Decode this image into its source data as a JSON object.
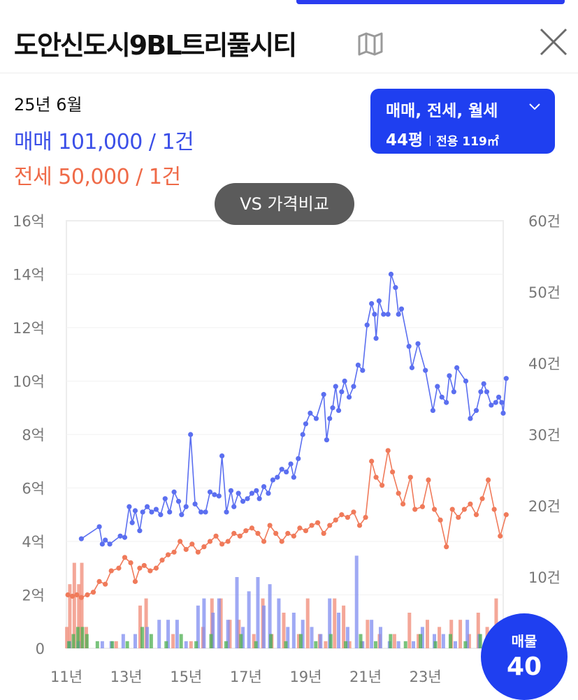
{
  "header": {
    "title": "도안신도시9BL트리풀시티",
    "map_icon": "map-icon",
    "close_icon": "close-icon"
  },
  "summary": {
    "period": "25년 6월",
    "sale_label": "매매",
    "sale_value": "101,000 / 1건",
    "jeonse_label": "전세",
    "jeonse_value": "50,000 / 1건"
  },
  "filter": {
    "types": "매매, 전세, 월세",
    "size": "44평",
    "area": "전용 119㎡"
  },
  "compare_button": "VS 가격비교",
  "listings": {
    "label": "매물",
    "count": "40"
  },
  "colors": {
    "accent": "#1f3ff0",
    "sale": "#5b6ff0",
    "jeonse": "#f07a5a",
    "monthly": "#4caf50"
  },
  "chart_data": {
    "type": "line",
    "x_tick_labels": [
      "11년",
      "13년",
      "15년",
      "17년",
      "19년",
      "21년",
      "23년"
    ],
    "y_left_ticks": [
      "0",
      "2억",
      "4억",
      "6억",
      "8억",
      "10억",
      "12억",
      "14억",
      "16억"
    ],
    "y_right_ticks": [
      "10건",
      "20건",
      "30건",
      "40건",
      "50건",
      "60건"
    ],
    "ylim_left_eok": [
      0,
      16
    ],
    "ylim_right_count": [
      0,
      60
    ],
    "xlim_year": [
      2011,
      2025.6
    ],
    "grid": true,
    "series": [
      {
        "color": "#5b6ff0",
        "axis": "left",
        "points": [
          [
            2011.5,
            4.1
          ],
          [
            2012.1,
            4.55
          ],
          [
            2012.2,
            3.9
          ],
          [
            2012.3,
            4.05
          ],
          [
            2012.45,
            3.9
          ],
          [
            2012.8,
            4.2
          ],
          [
            2012.95,
            4.15
          ],
          [
            2013.1,
            5.3
          ],
          [
            2013.2,
            4.7
          ],
          [
            2013.3,
            5.15
          ],
          [
            2013.45,
            4.4
          ],
          [
            2013.55,
            5.1
          ],
          [
            2013.7,
            5.3
          ],
          [
            2013.85,
            5.1
          ],
          [
            2014.0,
            5.2
          ],
          [
            2014.15,
            5.0
          ],
          [
            2014.3,
            5.6
          ],
          [
            2014.45,
            5.1
          ],
          [
            2014.6,
            5.85
          ],
          [
            2014.75,
            5.5
          ],
          [
            2014.85,
            5.0
          ],
          [
            2015.0,
            5.3
          ],
          [
            2015.15,
            8.0
          ],
          [
            2015.3,
            5.4
          ],
          [
            2015.5,
            5.1
          ],
          [
            2015.65,
            5.1
          ],
          [
            2015.8,
            5.85
          ],
          [
            2015.95,
            5.75
          ],
          [
            2016.1,
            5.7
          ],
          [
            2016.2,
            7.2
          ],
          [
            2016.35,
            5.1
          ],
          [
            2016.5,
            5.9
          ],
          [
            2016.6,
            5.3
          ],
          [
            2016.75,
            5.8
          ],
          [
            2016.9,
            5.5
          ],
          [
            2017.05,
            5.6
          ],
          [
            2017.2,
            5.8
          ],
          [
            2017.35,
            5.9
          ],
          [
            2017.45,
            5.6
          ],
          [
            2017.6,
            6.05
          ],
          [
            2017.75,
            5.8
          ],
          [
            2017.9,
            6.3
          ],
          [
            2018.05,
            6.4
          ],
          [
            2018.2,
            6.7
          ],
          [
            2018.35,
            6.6
          ],
          [
            2018.5,
            6.9
          ],
          [
            2018.6,
            6.4
          ],
          [
            2018.75,
            7.1
          ],
          [
            2018.9,
            8.0
          ],
          [
            2019.0,
            8.4
          ],
          [
            2019.15,
            8.8
          ],
          [
            2019.35,
            8.6
          ],
          [
            2019.6,
            9.5
          ],
          [
            2019.7,
            7.8
          ],
          [
            2019.8,
            8.6
          ],
          [
            2019.9,
            9.0
          ],
          [
            2020.0,
            9.8
          ],
          [
            2020.1,
            8.9
          ],
          [
            2020.2,
            9.6
          ],
          [
            2020.3,
            10.0
          ],
          [
            2020.45,
            9.4
          ],
          [
            2020.6,
            9.8
          ],
          [
            2020.75,
            10.6
          ],
          [
            2020.9,
            10.4
          ],
          [
            2021.05,
            12.1
          ],
          [
            2021.2,
            12.9
          ],
          [
            2021.3,
            12.5
          ],
          [
            2021.35,
            11.6
          ],
          [
            2021.45,
            13.0
          ],
          [
            2021.6,
            12.5
          ],
          [
            2021.75,
            12.5
          ],
          [
            2021.85,
            14.0
          ],
          [
            2022.0,
            13.5
          ],
          [
            2022.1,
            12.5
          ],
          [
            2022.2,
            12.7
          ],
          [
            2022.45,
            11.3
          ],
          [
            2022.55,
            10.5
          ],
          [
            2022.75,
            11.4
          ],
          [
            2023.0,
            10.4
          ],
          [
            2023.25,
            8.9
          ],
          [
            2023.4,
            9.8
          ],
          [
            2023.55,
            9.4
          ],
          [
            2023.7,
            9.2
          ],
          [
            2023.8,
            10.2
          ],
          [
            2023.95,
            9.6
          ],
          [
            2024.05,
            10.5
          ],
          [
            2024.35,
            10.0
          ],
          [
            2024.5,
            8.6
          ],
          [
            2024.7,
            8.9
          ],
          [
            2024.85,
            9.6
          ],
          [
            2024.95,
            9.9
          ],
          [
            2025.05,
            9.6
          ],
          [
            2025.2,
            9.1
          ],
          [
            2025.35,
            9.2
          ],
          [
            2025.45,
            9.4
          ],
          [
            2025.55,
            9.2
          ],
          [
            2025.6,
            8.8
          ],
          [
            2025.7,
            10.1
          ]
        ]
      },
      {
        "color": "#f07a5a",
        "axis": "left",
        "points": [
          [
            2011.05,
            2.0
          ],
          [
            2011.2,
            1.95
          ],
          [
            2011.35,
            2.0
          ],
          [
            2011.5,
            1.9
          ],
          [
            2011.7,
            2.0
          ],
          [
            2011.9,
            2.1
          ],
          [
            2012.1,
            2.5
          ],
          [
            2012.3,
            2.4
          ],
          [
            2012.5,
            2.9
          ],
          [
            2012.75,
            3.0
          ],
          [
            2012.95,
            3.4
          ],
          [
            2013.15,
            3.2
          ],
          [
            2013.3,
            2.5
          ],
          [
            2013.45,
            3.0
          ],
          [
            2013.6,
            3.1
          ],
          [
            2013.8,
            2.9
          ],
          [
            2014.0,
            3.0
          ],
          [
            2014.2,
            3.3
          ],
          [
            2014.4,
            3.5
          ],
          [
            2014.6,
            3.6
          ],
          [
            2014.8,
            4.0
          ],
          [
            2015.0,
            3.7
          ],
          [
            2015.2,
            3.9
          ],
          [
            2015.4,
            3.6
          ],
          [
            2015.6,
            3.8
          ],
          [
            2015.8,
            4.0
          ],
          [
            2016.0,
            4.2
          ],
          [
            2016.2,
            3.9
          ],
          [
            2016.4,
            4.0
          ],
          [
            2016.6,
            4.3
          ],
          [
            2016.8,
            4.2
          ],
          [
            2017.0,
            4.4
          ],
          [
            2017.2,
            4.5
          ],
          [
            2017.4,
            4.3
          ],
          [
            2017.6,
            4.0
          ],
          [
            2017.8,
            4.6
          ],
          [
            2018.0,
            4.3
          ],
          [
            2018.2,
            4.0
          ],
          [
            2018.4,
            4.3
          ],
          [
            2018.6,
            4.2
          ],
          [
            2018.8,
            4.5
          ],
          [
            2019.0,
            4.4
          ],
          [
            2019.2,
            4.6
          ],
          [
            2019.4,
            4.7
          ],
          [
            2019.6,
            4.3
          ],
          [
            2019.8,
            4.6
          ],
          [
            2020.0,
            4.8
          ],
          [
            2020.2,
            5.0
          ],
          [
            2020.4,
            4.9
          ],
          [
            2020.6,
            5.1
          ],
          [
            2020.8,
            4.6
          ],
          [
            2021.0,
            4.9
          ],
          [
            2021.2,
            7.0
          ],
          [
            2021.35,
            6.4
          ],
          [
            2021.55,
            6.1
          ],
          [
            2021.75,
            7.4
          ],
          [
            2021.9,
            6.6
          ],
          [
            2022.1,
            5.8
          ],
          [
            2022.25,
            5.4
          ],
          [
            2022.5,
            6.4
          ],
          [
            2022.65,
            5.2
          ],
          [
            2022.9,
            5.3
          ],
          [
            2023.1,
            6.3
          ],
          [
            2023.3,
            5.2
          ],
          [
            2023.5,
            4.8
          ],
          [
            2023.7,
            3.8
          ],
          [
            2023.9,
            5.2
          ],
          [
            2024.1,
            4.9
          ],
          [
            2024.3,
            5.2
          ],
          [
            2024.5,
            5.4
          ],
          [
            2024.7,
            5.0
          ],
          [
            2024.9,
            5.6
          ],
          [
            2025.1,
            6.3
          ],
          [
            2025.3,
            5.2
          ],
          [
            2025.5,
            4.2
          ],
          [
            2025.7,
            5.0
          ]
        ]
      }
    ],
    "volume_bars": [
      {
        "color": "#f08a76",
        "axis": "right",
        "points": [
          [
            2011.05,
            3
          ],
          [
            2011.15,
            9
          ],
          [
            2011.3,
            12
          ],
          [
            2011.45,
            9
          ],
          [
            2011.55,
            12
          ],
          [
            2011.7,
            3
          ],
          [
            2012.7,
            1
          ],
          [
            2013.5,
            6
          ],
          [
            2013.7,
            7
          ],
          [
            2014.6,
            2
          ],
          [
            2015.2,
            1
          ],
          [
            2015.6,
            3
          ],
          [
            2015.9,
            7
          ],
          [
            2016.2,
            7
          ],
          [
            2016.5,
            4
          ],
          [
            2016.8,
            4
          ],
          [
            2017.3,
            2
          ],
          [
            2017.6,
            7
          ],
          [
            2017.9,
            2
          ],
          [
            2018.3,
            5
          ],
          [
            2018.8,
            2
          ],
          [
            2019.1,
            7
          ],
          [
            2019.5,
            2
          ],
          [
            2019.7,
            1
          ],
          [
            2020.0,
            7
          ],
          [
            2020.3,
            6
          ],
          [
            2020.5,
            1
          ],
          [
            2020.9,
            1
          ],
          [
            2021.1,
            4
          ],
          [
            2021.5,
            2
          ],
          [
            2022.0,
            2
          ],
          [
            2022.5,
            5
          ],
          [
            2022.8,
            2
          ],
          [
            2023.1,
            4
          ],
          [
            2023.5,
            3
          ],
          [
            2023.9,
            4
          ],
          [
            2024.2,
            4
          ],
          [
            2024.5,
            2
          ],
          [
            2024.8,
            5
          ],
          [
            2025.1,
            3
          ],
          [
            2025.4,
            7
          ],
          [
            2025.6,
            2
          ]
        ]
      },
      {
        "color": "#7f8cf0",
        "axis": "right",
        "points": [
          [
            2011.1,
            1
          ],
          [
            2011.4,
            1
          ],
          [
            2012.2,
            1
          ],
          [
            2012.5,
            1
          ],
          [
            2012.9,
            2
          ],
          [
            2013.3,
            2
          ],
          [
            2013.7,
            3
          ],
          [
            2014.1,
            4
          ],
          [
            2014.4,
            4
          ],
          [
            2014.7,
            4
          ],
          [
            2015.0,
            1
          ],
          [
            2015.4,
            6
          ],
          [
            2015.6,
            7
          ],
          [
            2015.9,
            5
          ],
          [
            2016.1,
            7
          ],
          [
            2016.4,
            4
          ],
          [
            2016.7,
            10
          ],
          [
            2016.9,
            3
          ],
          [
            2017.1,
            8
          ],
          [
            2017.4,
            10
          ],
          [
            2017.6,
            6
          ],
          [
            2017.8,
            9
          ],
          [
            2018.1,
            7
          ],
          [
            2018.4,
            3
          ],
          [
            2018.6,
            5
          ],
          [
            2018.9,
            4
          ],
          [
            2019.2,
            3
          ],
          [
            2019.5,
            2
          ],
          [
            2019.8,
            7
          ],
          [
            2020.1,
            5
          ],
          [
            2020.4,
            3
          ],
          [
            2020.7,
            13
          ],
          [
            2020.9,
            1
          ],
          [
            2021.2,
            4
          ],
          [
            2021.5,
            3
          ],
          [
            2021.8,
            1
          ],
          [
            2022.1,
            1
          ],
          [
            2022.6,
            1
          ],
          [
            2022.9,
            3
          ],
          [
            2023.3,
            2
          ],
          [
            2023.6,
            2
          ],
          [
            2024.0,
            1
          ],
          [
            2024.4,
            4
          ],
          [
            2024.8,
            2
          ],
          [
            2025.2,
            2
          ],
          [
            2025.6,
            1
          ]
        ]
      },
      {
        "color": "#4caf50",
        "axis": "right",
        "points": [
          [
            2011.05,
            1
          ],
          [
            2011.2,
            2
          ],
          [
            2011.35,
            3
          ],
          [
            2011.5,
            3
          ],
          [
            2011.65,
            2
          ],
          [
            2012.0,
            1
          ],
          [
            2012.5,
            1
          ],
          [
            2013.0,
            1
          ],
          [
            2013.5,
            3
          ],
          [
            2013.8,
            2
          ],
          [
            2014.3,
            1
          ],
          [
            2014.8,
            2
          ],
          [
            2015.3,
            1
          ],
          [
            2015.8,
            2
          ],
          [
            2016.3,
            1
          ],
          [
            2016.8,
            2
          ],
          [
            2017.3,
            1
          ],
          [
            2017.8,
            2
          ],
          [
            2018.3,
            1
          ],
          [
            2018.8,
            2
          ],
          [
            2019.3,
            1
          ],
          [
            2019.8,
            2
          ],
          [
            2020.3,
            1
          ],
          [
            2020.8,
            2
          ],
          [
            2021.3,
            1
          ],
          [
            2021.8,
            2
          ],
          [
            2022.3,
            1
          ],
          [
            2022.8,
            2
          ],
          [
            2023.3,
            1
          ],
          [
            2023.8,
            2
          ],
          [
            2024.3,
            1
          ],
          [
            2024.8,
            2
          ],
          [
            2025.3,
            1
          ],
          [
            2025.6,
            2
          ]
        ]
      }
    ]
  }
}
